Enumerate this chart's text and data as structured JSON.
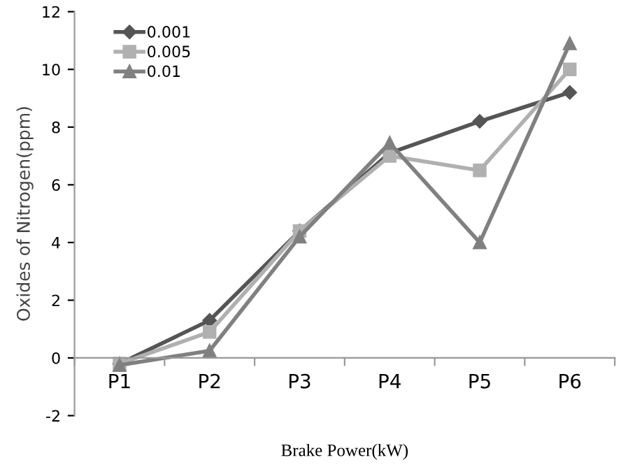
{
  "chart_data": {
    "type": "line",
    "xlabel": "Brake Power(kW)",
    "ylabel": "Oxides of Nitrogen(ppm)",
    "categories": [
      "P1",
      "P2",
      "P3",
      "P4",
      "P5",
      "P6"
    ],
    "series": [
      {
        "name": "0.001",
        "color": "#555555",
        "marker": "diamond",
        "values": [
          -0.2,
          1.3,
          4.4,
          7.1,
          8.2,
          9.2
        ]
      },
      {
        "name": "0.005",
        "color": "#b0b0b0",
        "marker": "square",
        "values": [
          -0.2,
          0.9,
          4.4,
          7.0,
          6.5,
          10.0
        ]
      },
      {
        "name": "0.01",
        "color": "#808080",
        "marker": "triangle",
        "values": [
          -0.25,
          0.25,
          4.2,
          7.45,
          4.0,
          10.9
        ]
      }
    ],
    "ylim": [
      -2,
      12
    ],
    "yticks": [
      -2,
      0,
      2,
      4,
      6,
      8,
      10,
      12
    ],
    "grid": false,
    "legend": "top left",
    "line_style": "solid"
  }
}
